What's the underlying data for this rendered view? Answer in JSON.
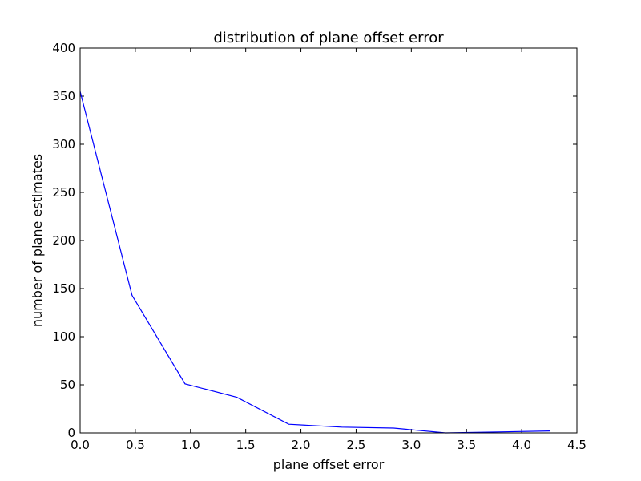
{
  "chart_data": {
    "type": "line",
    "title": "distribution of plane offset error",
    "xlabel": "plane offset error",
    "ylabel": "number of plane estimates",
    "xlim": [
      0.0,
      4.5
    ],
    "ylim": [
      0,
      400
    ],
    "xticks": [
      "0.0",
      "0.5",
      "1.0",
      "1.5",
      "2.0",
      "2.5",
      "3.0",
      "3.5",
      "4.0",
      "4.5"
    ],
    "yticks": [
      "0",
      "50",
      "100",
      "150",
      "200",
      "250",
      "300",
      "350",
      "400"
    ],
    "grid": false,
    "series": [
      {
        "color": "#0000ff",
        "x": [
          0.0,
          0.47,
          0.95,
          1.42,
          1.89,
          2.37,
          2.84,
          3.31,
          3.79,
          4.26
        ],
        "y": [
          355,
          143,
          51,
          37,
          9,
          6,
          5,
          0,
          1,
          2
        ]
      }
    ]
  }
}
